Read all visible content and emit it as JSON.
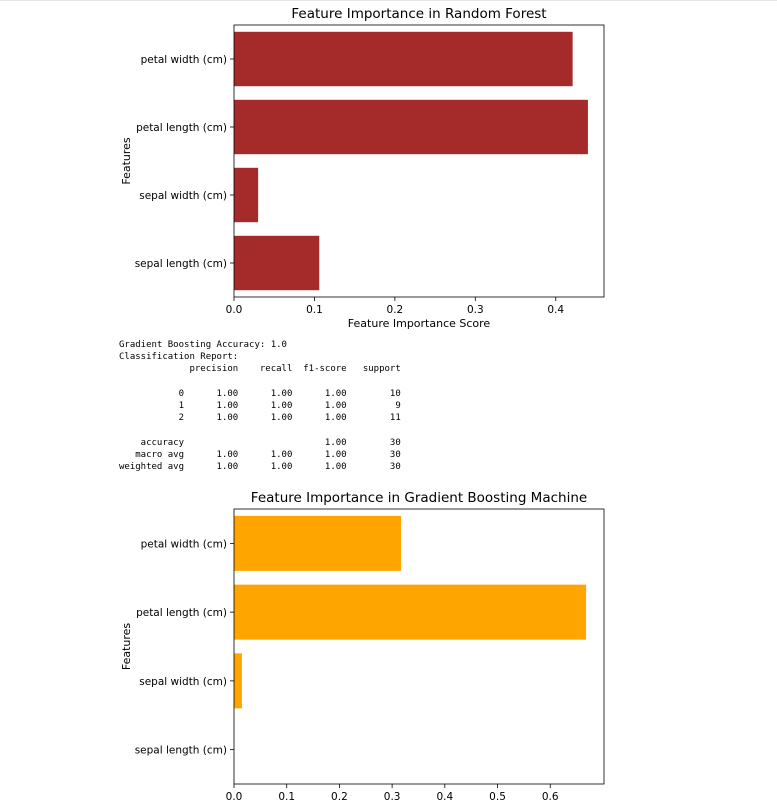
{
  "charts": [
    {
      "type": "bar",
      "orientation": "horizontal",
      "title": "Feature Importance in Random Forest",
      "xlabel": "Feature Importance Score",
      "ylabel": "Features",
      "color": "#a52a2a",
      "categories": [
        "sepal length (cm)",
        "sepal width (cm)",
        "petal length (cm)",
        "petal width (cm)"
      ],
      "values": [
        0.106,
        0.03,
        0.44,
        0.421
      ],
      "xlim": [
        0,
        0.46
      ],
      "xticks": [
        "0.0",
        "0.1",
        "0.2",
        "0.3",
        "0.4"
      ],
      "xtick_values": [
        0,
        0.1,
        0.2,
        0.3,
        0.4
      ]
    },
    {
      "type": "bar",
      "orientation": "horizontal",
      "title": "Feature Importance in Gradient Boosting Machine",
      "xlabel": "",
      "ylabel": "Features",
      "color": "#ffa500",
      "categories": [
        "sepal length (cm)",
        "sepal width (cm)",
        "petal length (cm)",
        "petal width (cm)"
      ],
      "values": [
        0.0,
        0.015,
        0.668,
        0.317
      ],
      "xlim": [
        0,
        0.702
      ],
      "xticks": [
        "0.0",
        "0.1",
        "0.2",
        "0.3",
        "0.4",
        "0.5",
        "0.6"
      ],
      "xtick_values": [
        0,
        0.1,
        0.2,
        0.3,
        0.4,
        0.5,
        0.6
      ]
    }
  ],
  "report": {
    "accuracy_line": "Gradient Boosting Accuracy: 1.0",
    "heading": "Classification Report:",
    "columns": [
      "precision",
      "recall",
      "f1-score",
      "support"
    ],
    "rows": [
      {
        "label": "0",
        "values": [
          "1.00",
          "1.00",
          "1.00",
          "10"
        ]
      },
      {
        "label": "1",
        "values": [
          "1.00",
          "1.00",
          "1.00",
          "9"
        ]
      },
      {
        "label": "2",
        "values": [
          "1.00",
          "1.00",
          "1.00",
          "11"
        ]
      }
    ],
    "summary": [
      {
        "label": "accuracy",
        "values": [
          "",
          "",
          "1.00",
          "30"
        ]
      },
      {
        "label": "macro avg",
        "values": [
          "1.00",
          "1.00",
          "1.00",
          "30"
        ]
      },
      {
        "label": "weighted avg",
        "values": [
          "1.00",
          "1.00",
          "1.00",
          "30"
        ]
      }
    ]
  }
}
